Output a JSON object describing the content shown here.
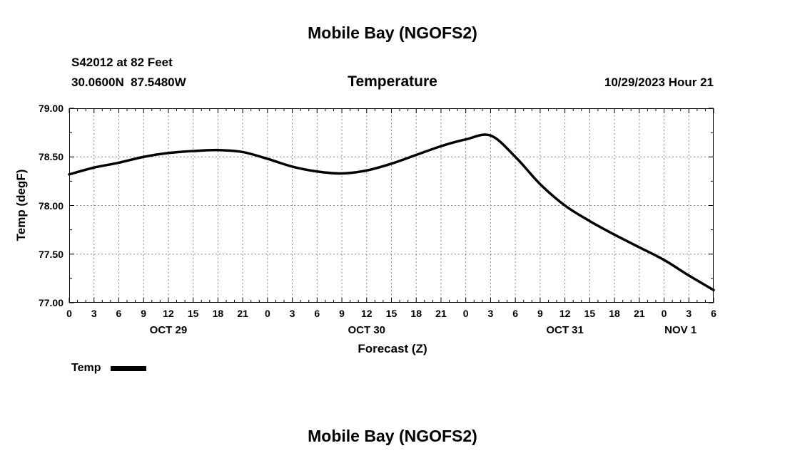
{
  "chart_data": {
    "type": "line",
    "title": "Mobile Bay (NGOFS2)",
    "subtitle": "Temperature",
    "station": "S42012 at 82 Feet",
    "location": "30.0600N  87.5480W",
    "run_label": "10/29/2023 Hour 21",
    "xlabel": "Forecast (Z)",
    "ylabel": "Temp (degF)",
    "x_unit": "hours since OCT 29 00Z",
    "xlim": [
      0,
      78
    ],
    "ylim": [
      77.0,
      79.0
    ],
    "grid": "dashed",
    "legend_position": "bottom-left",
    "x_minor_tick": 1,
    "y_minor_tick": 0.25,
    "yticks": [
      77.0,
      77.5,
      78.0,
      78.5,
      79.0
    ],
    "ytick_labels": [
      "77.00",
      "77.50",
      "78.00",
      "78.50",
      "79.00"
    ],
    "xticks": [
      0,
      3,
      6,
      9,
      12,
      15,
      18,
      21,
      24,
      27,
      30,
      33,
      36,
      39,
      42,
      45,
      48,
      51,
      54,
      57,
      60,
      63,
      66,
      69,
      72,
      75,
      78
    ],
    "xtick_labels": [
      "0",
      "3",
      "6",
      "9",
      "12",
      "15",
      "18",
      "21",
      "0",
      "3",
      "6",
      "9",
      "12",
      "15",
      "18",
      "21",
      "0",
      "3",
      "6",
      "9",
      "12",
      "15",
      "18",
      "21",
      "0",
      "3",
      "6"
    ],
    "day_labels": [
      {
        "text": "OCT 29",
        "hour": 12
      },
      {
        "text": "OCT 30",
        "hour": 36
      },
      {
        "text": "OCT 31",
        "hour": 60
      },
      {
        "text": "NOV 1",
        "hour": 74
      }
    ],
    "series": [
      {
        "name": "Temp",
        "color": "#000000",
        "x": [
          0,
          3,
          6,
          9,
          12,
          15,
          18,
          21,
          24,
          27,
          30,
          33,
          36,
          39,
          42,
          45,
          48,
          51,
          54,
          57,
          60,
          63,
          66,
          69,
          72,
          75,
          78
        ],
        "y": [
          78.32,
          78.39,
          78.44,
          78.5,
          78.54,
          78.56,
          78.57,
          78.55,
          78.48,
          78.4,
          78.35,
          78.33,
          78.36,
          78.43,
          78.52,
          78.61,
          78.68,
          78.72,
          78.5,
          78.22,
          78.0,
          77.84,
          77.7,
          77.57,
          77.44,
          77.28,
          77.13
        ]
      }
    ]
  },
  "second_chart": {
    "title": "Mobile Bay (NGOFS2)"
  }
}
